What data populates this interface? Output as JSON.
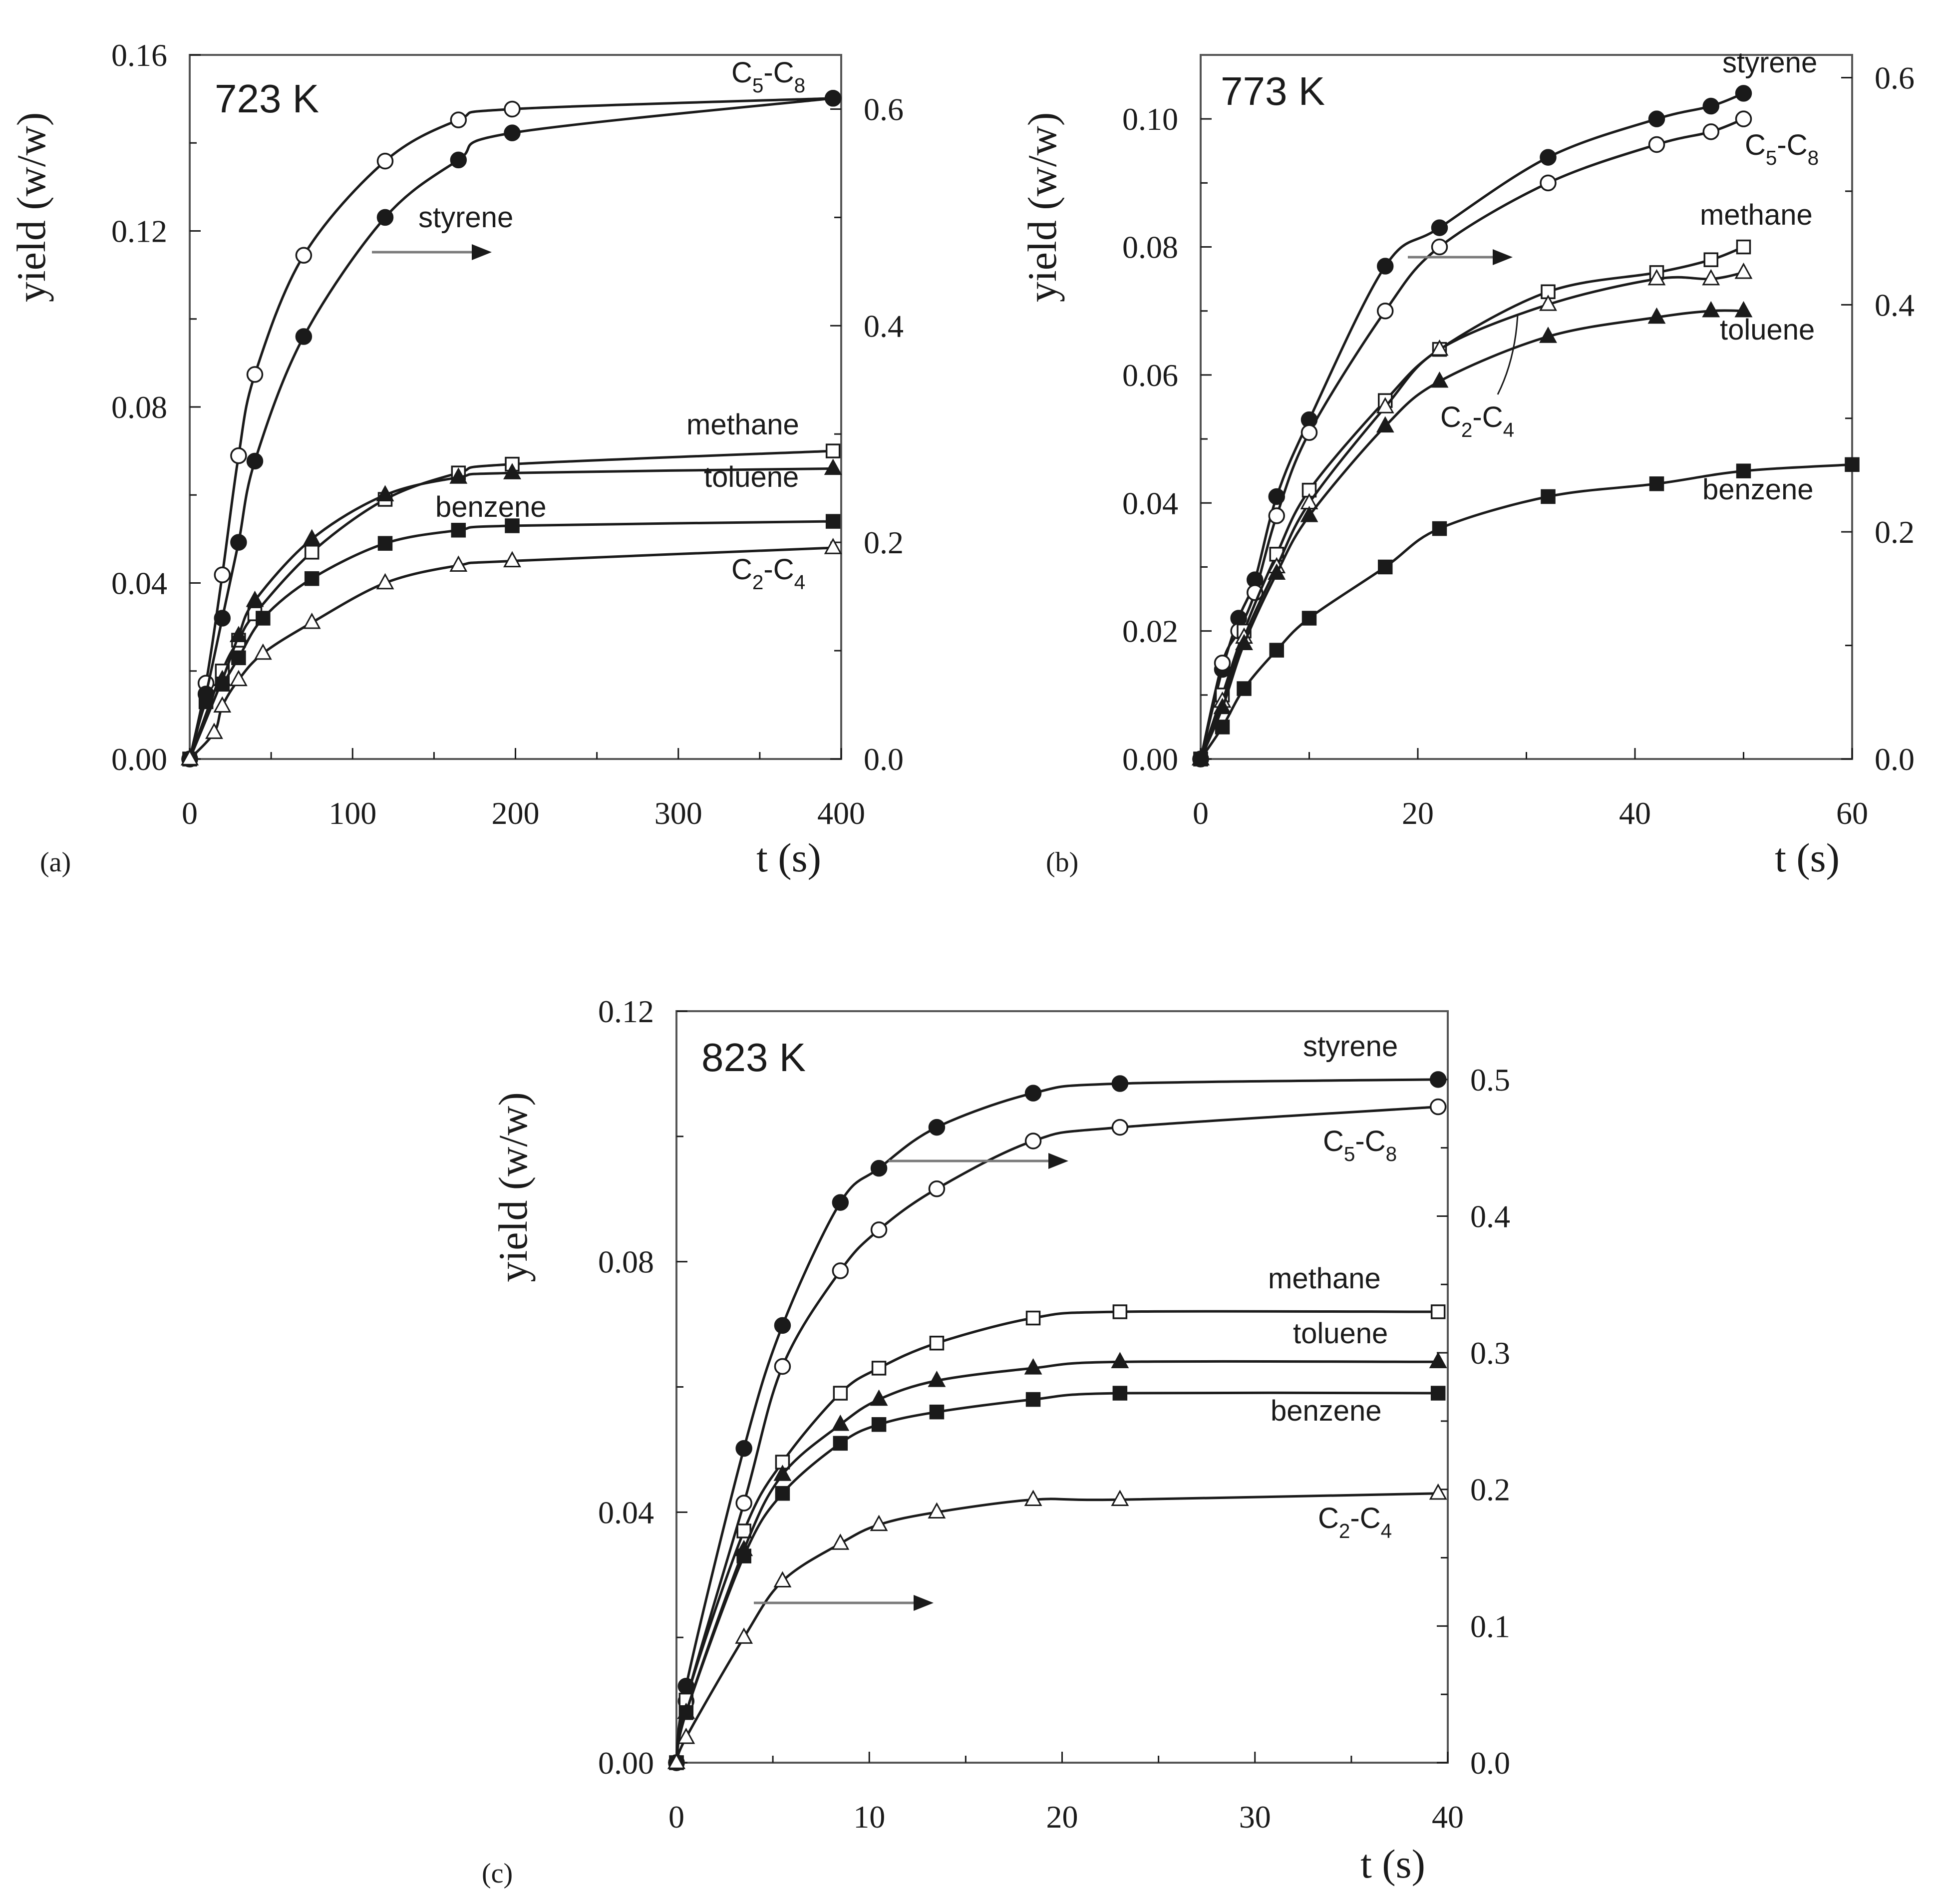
{
  "figure": {
    "colors": {
      "ink": "#1a1a1a",
      "arrow_gray": "#7a7a7a",
      "background": "#ffffff"
    }
  },
  "chart_data": [
    {
      "id": "a",
      "type": "line",
      "panel_label": "(a)",
      "title": "723 K",
      "xlabel": "t (s)",
      "ylabel": "yield (w/w)",
      "xlim": [
        0,
        400
      ],
      "ylim": [
        0,
        0.16
      ],
      "y2lim": [
        0,
        0.65
      ],
      "xticks": [
        "0",
        "100",
        "200",
        "300",
        "400"
      ],
      "yticks": [
        "0.00",
        "0.04",
        "0.08",
        "0.12",
        "0.16"
      ],
      "y2ticks": [
        "0.0",
        "0.2",
        "0.4",
        "0.6"
      ],
      "grid": false,
      "series": [
        {
          "name": "C5-C8",
          "label_main": "C",
          "label_sub1": "5",
          "label_mid": "-C",
          "label_sub2": "8",
          "axis": "y2",
          "marker": "circle-open",
          "x": [
            0,
            10,
            20,
            30,
            40,
            70,
            120,
            165,
            198,
            395
          ],
          "y": [
            0,
            0.07,
            0.17,
            0.28,
            0.355,
            0.465,
            0.552,
            0.59,
            0.6,
            0.61
          ]
        },
        {
          "name": "styrene",
          "axis": "y2",
          "marker": "circle-filled",
          "x": [
            0,
            10,
            20,
            30,
            40,
            70,
            120,
            165,
            198,
            395
          ],
          "y": [
            0,
            0.06,
            0.13,
            0.2,
            0.275,
            0.39,
            0.5,
            0.553,
            0.578,
            0.61
          ]
        },
        {
          "name": "methane",
          "axis": "y",
          "marker": "square-open",
          "x": [
            0,
            20,
            30,
            40,
            75,
            120,
            165,
            198,
            395
          ],
          "y": [
            0,
            0.02,
            0.027,
            0.033,
            0.047,
            0.059,
            0.065,
            0.067,
            0.07
          ]
        },
        {
          "name": "toluene",
          "axis": "y",
          "marker": "triangle-filled",
          "x": [
            0,
            20,
            30,
            40,
            75,
            120,
            165,
            198,
            395
          ],
          "y": [
            0,
            0.018,
            0.028,
            0.036,
            0.05,
            0.06,
            0.064,
            0.065,
            0.066
          ]
        },
        {
          "name": "benzene",
          "axis": "y",
          "marker": "square-filled",
          "x": [
            0,
            10,
            20,
            30,
            45,
            75,
            120,
            165,
            198,
            395
          ],
          "y": [
            0,
            0.013,
            0.017,
            0.023,
            0.032,
            0.041,
            0.049,
            0.052,
            0.053,
            0.054
          ]
        },
        {
          "name": "C2-C4",
          "label_main": "C",
          "label_sub1": "2",
          "label_mid": "-C",
          "label_sub2": "4",
          "axis": "y",
          "marker": "triangle-open",
          "x": [
            0,
            15,
            20,
            30,
            45,
            75,
            120,
            165,
            198,
            395
          ],
          "y": [
            0,
            0.006,
            0.012,
            0.018,
            0.024,
            0.031,
            0.04,
            0.044,
            0.045,
            0.048
          ]
        }
      ],
      "annotations": [
        {
          "text": "styrene",
          "arrow": "right-axis"
        }
      ]
    },
    {
      "id": "b",
      "type": "line",
      "panel_label": "(b)",
      "title": "773 K",
      "xlabel": "t (s)",
      "ylabel": "yield (w/w)",
      "xlim": [
        0,
        60
      ],
      "ylim": [
        0,
        0.11
      ],
      "y2lim": [
        0,
        0.62
      ],
      "xticks": [
        "0",
        "20",
        "40",
        "60"
      ],
      "yticks": [
        "0.00",
        "0.02",
        "0.04",
        "0.06",
        "0.08",
        "0.10"
      ],
      "y2ticks": [
        "0.0",
        "0.2",
        "0.4",
        "0.6"
      ],
      "grid": false,
      "series": [
        {
          "name": "styrene",
          "axis": "y",
          "marker": "circle-filled",
          "x": [
            0,
            2,
            3.5,
            5,
            7,
            10,
            17,
            22,
            32,
            42,
            47,
            50
          ],
          "y": [
            0,
            0.014,
            0.022,
            0.028,
            0.041,
            0.053,
            0.077,
            0.083,
            0.094,
            0.1,
            0.102,
            0.104
          ]
        },
        {
          "name": "C5-C8",
          "label_main": "C",
          "label_sub1": "5",
          "label_mid": "-C",
          "label_sub2": "8",
          "axis": "y",
          "marker": "circle-open",
          "x": [
            0,
            2,
            3.5,
            5,
            7,
            10,
            17,
            22,
            32,
            42,
            47,
            50
          ],
          "y": [
            0,
            0.015,
            0.02,
            0.026,
            0.038,
            0.051,
            0.07,
            0.08,
            0.09,
            0.096,
            0.098,
            0.1
          ]
        },
        {
          "name": "methane",
          "axis": "y",
          "marker": "square-open",
          "x": [
            0,
            2,
            4,
            7,
            10,
            17,
            22,
            32,
            42,
            47,
            50
          ],
          "y": [
            0,
            0.01,
            0.02,
            0.032,
            0.042,
            0.056,
            0.064,
            0.073,
            0.076,
            0.078,
            0.08
          ]
        },
        {
          "name": "C2-C4",
          "label_main": "C",
          "label_sub1": "2",
          "label_mid": "-C",
          "label_sub2": "4",
          "axis": "y",
          "marker": "triangle-open",
          "x": [
            0,
            2,
            4,
            7,
            10,
            17,
            22,
            32,
            42,
            47,
            50
          ],
          "y": [
            0,
            0.009,
            0.019,
            0.03,
            0.04,
            0.055,
            0.064,
            0.071,
            0.075,
            0.075,
            0.076
          ]
        },
        {
          "name": "toluene",
          "axis": "y",
          "marker": "triangle-filled",
          "x": [
            0,
            2,
            4,
            7,
            10,
            17,
            22,
            32,
            42,
            47,
            50
          ],
          "y": [
            0,
            0.008,
            0.018,
            0.029,
            0.038,
            0.052,
            0.059,
            0.066,
            0.069,
            0.07,
            0.07
          ]
        },
        {
          "name": "benzene",
          "axis": "y",
          "marker": "square-filled",
          "x": [
            0,
            2,
            4,
            7,
            10,
            17,
            22,
            32,
            42,
            50,
            60
          ],
          "y": [
            0,
            0.005,
            0.011,
            0.017,
            0.022,
            0.03,
            0.036,
            0.041,
            0.043,
            0.045,
            0.046
          ]
        }
      ],
      "annotations": [
        {
          "text": "",
          "arrow": "right-axis"
        }
      ]
    },
    {
      "id": "c",
      "type": "line",
      "panel_label": "(c)",
      "title": "823 K",
      "xlabel": "t (s)",
      "ylabel": "yield (w/w)",
      "xlim": [
        0,
        40
      ],
      "ylim": [
        0,
        0.12
      ],
      "y2lim": [
        0,
        0.55
      ],
      "xticks": [
        "0",
        "10",
        "20",
        "30",
        "40"
      ],
      "yticks": [
        "0.00",
        "0.04",
        "0.08",
        "0.12"
      ],
      "y2ticks": [
        "0.0",
        "0.1",
        "0.2",
        "0.3",
        "0.4",
        "0.5"
      ],
      "grid": false,
      "series": [
        {
          "name": "styrene",
          "axis": "y2",
          "marker": "circle-filled",
          "x": [
            0,
            0.5,
            3.5,
            5.5,
            8.5,
            10.5,
            13.5,
            18.5,
            23,
            39.5
          ],
          "y": [
            0,
            0.056,
            0.23,
            0.32,
            0.41,
            0.435,
            0.465,
            0.49,
            0.497,
            0.5
          ]
        },
        {
          "name": "C5-C8",
          "label_main": "C",
          "label_sub1": "5",
          "label_mid": "-C",
          "label_sub2": "8",
          "axis": "y2",
          "marker": "circle-open",
          "x": [
            0,
            0.5,
            3.5,
            5.5,
            8.5,
            10.5,
            13.5,
            18.5,
            23,
            39.5
          ],
          "y": [
            0,
            0.045,
            0.19,
            0.29,
            0.36,
            0.39,
            0.42,
            0.455,
            0.465,
            0.48
          ]
        },
        {
          "name": "methane",
          "axis": "y",
          "marker": "square-open",
          "x": [
            0,
            0.5,
            3.5,
            5.5,
            8.5,
            10.5,
            13.5,
            18.5,
            23,
            39.5
          ],
          "y": [
            0,
            0.01,
            0.037,
            0.048,
            0.059,
            0.063,
            0.067,
            0.071,
            0.072,
            0.072
          ]
        },
        {
          "name": "toluene",
          "axis": "y",
          "marker": "triangle-filled",
          "x": [
            0,
            0.5,
            3.5,
            5.5,
            8.5,
            10.5,
            13.5,
            18.5,
            23,
            39.5
          ],
          "y": [
            0,
            0.008,
            0.034,
            0.046,
            0.054,
            0.058,
            0.061,
            0.063,
            0.064,
            0.064
          ]
        },
        {
          "name": "benzene",
          "axis": "y",
          "marker": "square-filled",
          "x": [
            0,
            0.5,
            3.5,
            5.5,
            8.5,
            10.5,
            13.5,
            18.5,
            23,
            39.5
          ],
          "y": [
            0,
            0.008,
            0.033,
            0.043,
            0.051,
            0.054,
            0.056,
            0.058,
            0.059,
            0.059
          ]
        },
        {
          "name": "C2-C4",
          "label_main": "C",
          "label_sub1": "2",
          "label_mid": "-C",
          "label_sub2": "4",
          "axis": "y",
          "marker": "triangle-open",
          "x": [
            0,
            0.5,
            3.5,
            5.5,
            8.5,
            10.5,
            13.5,
            18.5,
            23,
            39.5
          ],
          "y": [
            0,
            0.004,
            0.02,
            0.029,
            0.035,
            0.038,
            0.04,
            0.042,
            0.042,
            0.043
          ]
        }
      ],
      "annotations": [
        {
          "text": "",
          "arrow": "right-axis"
        },
        {
          "text": "",
          "arrow": "right-axis"
        }
      ]
    }
  ]
}
